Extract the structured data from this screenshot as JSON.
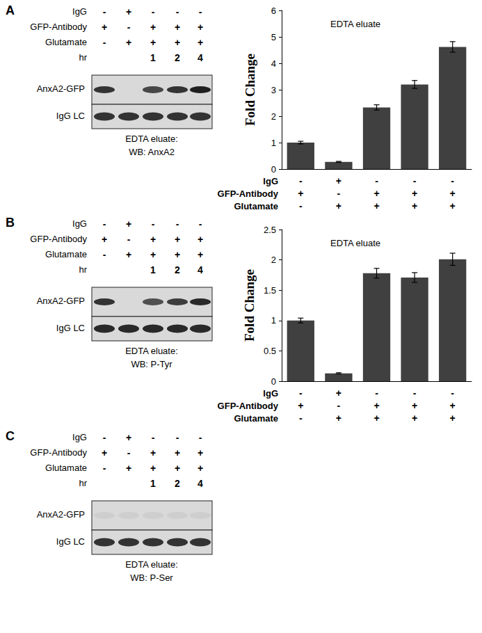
{
  "chart_data": [
    {
      "type": "bar",
      "title": "EDTA eluate",
      "ylabel": "Fold Change",
      "annotations": [
        "IgG",
        "GFP-Antibody",
        "Glutamate"
      ],
      "categories": [
        "-\n+\n-",
        "+\n-\n+",
        "-\n+\n+",
        "-\n+\n+",
        "-\n+\n+"
      ],
      "values": [
        1.0,
        0.27,
        2.33,
        3.2,
        4.62
      ],
      "errors": [
        0.05,
        0.02,
        0.1,
        0.15,
        0.2
      ],
      "color": "#404040",
      "ylim": [
        0,
        6
      ],
      "yticks": [
        0,
        1,
        2,
        3,
        4,
        5,
        6
      ],
      "grid": false
    },
    {
      "type": "bar",
      "title": "EDTA eluate",
      "ylabel": "Fold Change",
      "annotations": [
        "IgG",
        "GFP-Antibody",
        "Glutamate"
      ],
      "categories": [
        "-\n+\n-",
        "+\n-\n+",
        "-\n+\n+",
        "-\n+\n+",
        "-\n+\n+"
      ],
      "values": [
        1.0,
        0.13,
        1.78,
        1.71,
        2.01
      ],
      "errors": [
        0.04,
        0.01,
        0.08,
        0.08,
        0.1
      ],
      "color": "#404040",
      "ylim": [
        0,
        2.5
      ],
      "yticks": [
        0,
        0.5,
        1,
        1.5,
        2,
        2.5
      ],
      "grid": false
    }
  ],
  "panels": [
    {
      "label": "A",
      "lanes_table": [
        {
          "label": "IgG",
          "values": [
            "-",
            "+",
            "-",
            "-",
            "-"
          ]
        },
        {
          "label": "GFP-Antibody",
          "values": [
            "+",
            "-",
            "+",
            "+",
            "+"
          ]
        },
        {
          "label": "Glutamate",
          "values": [
            "-",
            "+",
            "+",
            "+",
            "+"
          ]
        },
        {
          "label": "hr",
          "values": [
            null,
            null,
            "1",
            "2",
            "4"
          ]
        }
      ],
      "bands": [
        {
          "label": "AnxA2-GFP",
          "intensity": [
            0.85,
            0,
            0.75,
            0.85,
            0.95
          ]
        },
        {
          "label": "IgG LC",
          "intensity": [
            0.85,
            0.85,
            0.85,
            0.85,
            0.85
          ]
        }
      ],
      "caption": [
        "EDTA eluate:",
        "WB: AnxA2"
      ]
    },
    {
      "label": "B",
      "lanes_table": [
        {
          "label": "IgG",
          "values": [
            "-",
            "+",
            "-",
            "-",
            "-"
          ]
        },
        {
          "label": "GFP-Antibody",
          "values": [
            "+",
            "-",
            "+",
            "+",
            "+"
          ]
        },
        {
          "label": "Glutamate",
          "values": [
            "-",
            "+",
            "+",
            "+",
            "+"
          ]
        },
        {
          "label": "hr",
          "values": [
            null,
            null,
            "1",
            "2",
            "4"
          ]
        }
      ],
      "bands": [
        {
          "label": "AnxA2-GFP",
          "intensity": [
            0.85,
            0,
            0.7,
            0.8,
            0.9
          ]
        },
        {
          "label": "IgG LC",
          "intensity": [
            0.9,
            0.9,
            0.9,
            0.9,
            0.9
          ]
        }
      ],
      "caption": [
        "EDTA eluate:",
        "WB: P-Tyr"
      ]
    },
    {
      "label": "C",
      "lanes_table": [
        {
          "label": "IgG",
          "values": [
            "-",
            "+",
            "-",
            "-",
            "-"
          ]
        },
        {
          "label": "GFP-Antibody",
          "values": [
            "+",
            "-",
            "+",
            "+",
            "+"
          ]
        },
        {
          "label": "Glutamate",
          "values": [
            "-",
            "+",
            "+",
            "+",
            "+"
          ]
        },
        {
          "label": "hr",
          "values": [
            null,
            null,
            "1",
            "2",
            "4"
          ]
        }
      ],
      "bands": [
        {
          "label": "AnxA2-GFP",
          "intensity": [
            0.05,
            0.05,
            0.05,
            0.05,
            0.05
          ]
        },
        {
          "label": "IgG LC",
          "intensity": [
            0.85,
            0.85,
            0.85,
            0.85,
            0.85
          ]
        }
      ],
      "caption": [
        "EDTA eluate:",
        "WB: P-Ser"
      ]
    }
  ]
}
